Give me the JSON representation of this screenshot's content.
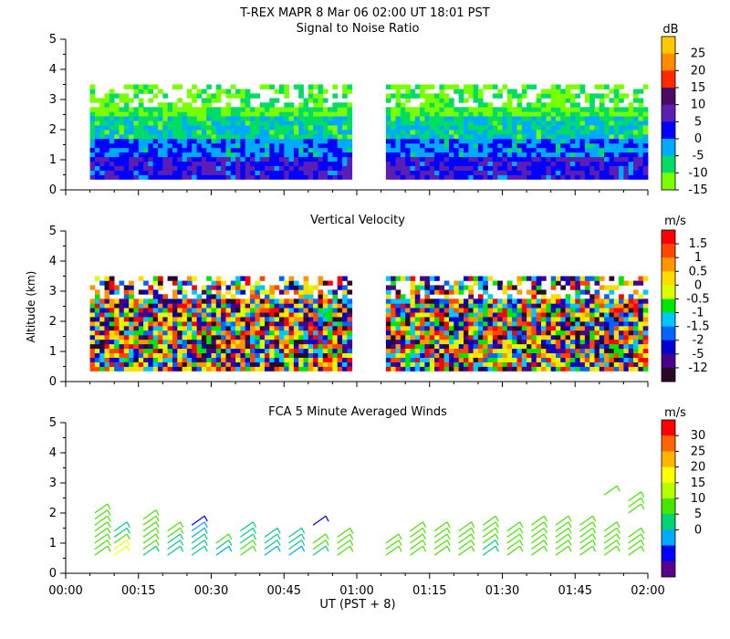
{
  "header": {
    "title": "T-REX   MAPR   8 Mar 06   02:00 UT   18:01   PST",
    "xlabel": "UT  (PST + 8)",
    "ylabel": "Altitude (km)",
    "x_ticks": [
      "00:00",
      "00:15",
      "00:30",
      "00:45",
      "01:00",
      "01:15",
      "01:30",
      "01:45",
      "02:00"
    ]
  },
  "chart_data": [
    {
      "type": "heatmap",
      "title": "Signal to Noise Ratio",
      "ylim": [
        0,
        5
      ],
      "y_ticks": [
        "0",
        "1",
        "2",
        "3",
        "4",
        "5"
      ],
      "colorbar": {
        "unit": "dB",
        "ticks": [
          "25",
          "20",
          "15",
          "10",
          "5",
          "0",
          "-5",
          "-10",
          "-15"
        ],
        "colors": [
          "#FFC800",
          "#FF8C00",
          "#FF2800",
          "#4B0A64",
          "#5A1EB4",
          "#0000FF",
          "#00AAFF",
          "#00DC64",
          "#78FF00"
        ]
      },
      "data_gaps": [
        [
          "00:59",
          "01:06"
        ]
      ]
    },
    {
      "type": "heatmap",
      "title": "Vertical Velocity",
      "ylim": [
        0,
        5
      ],
      "y_ticks": [
        "0",
        "1",
        "2",
        "3",
        "4",
        "5"
      ],
      "colorbar": {
        "unit": "m/s",
        "ticks": [
          "1.5",
          "1",
          "0.5",
          "0",
          "-0.5",
          "-1",
          "-1.5",
          "-2",
          "-5",
          "-12"
        ],
        "colors": [
          "#FF0000",
          "#FF4600",
          "#FF9600",
          "#FFDC00",
          "#DCFF00",
          "#00E600",
          "#00C8FF",
          "#0064FF",
          "#0000D2",
          "#46008C",
          "#280A28"
        ]
      },
      "data_gaps": [
        [
          "00:59",
          "01:06"
        ]
      ]
    },
    {
      "type": "scatter",
      "title": "FCA 5 Minute Averaged Winds",
      "ylim": [
        0,
        5
      ],
      "y_ticks": [
        "0",
        "1",
        "2",
        "3",
        "4",
        "5"
      ],
      "colorbar": {
        "unit": "m/s",
        "ticks": [
          "30",
          "25",
          "20",
          "15",
          "10",
          "5",
          "0"
        ],
        "colors": [
          "#FF0000",
          "#FF6400",
          "#FFB400",
          "#FFFF00",
          "#B4FF00",
          "#46E600",
          "#00D278",
          "#00AAFF",
          "#0000FF",
          "#5A008C"
        ]
      },
      "profiles": [
        {
          "time": "00:06",
          "heights": [
            0.6,
            0.8,
            1.0,
            1.2,
            1.4,
            1.6,
            1.8,
            2.0
          ],
          "speeds": [
            14,
            14,
            13,
            13,
            13,
            13,
            13,
            13
          ]
        },
        {
          "time": "00:10",
          "heights": [
            0.6,
            0.8,
            1.0,
            1.2,
            1.4
          ],
          "speeds": [
            20,
            20,
            12,
            10,
            10
          ]
        },
        {
          "time": "00:16",
          "heights": [
            0.6,
            0.8,
            1.0,
            1.2,
            1.4,
            1.6,
            1.8
          ],
          "speeds": [
            11,
            12,
            14,
            14,
            14,
            14,
            14
          ]
        },
        {
          "time": "00:21",
          "heights": [
            0.6,
            0.8,
            1.0,
            1.2,
            1.4
          ],
          "speeds": [
            9,
            9,
            9,
            13,
            13
          ]
        },
        {
          "time": "00:26",
          "heights": [
            0.6,
            0.8,
            1.0,
            1.2,
            1.4,
            1.6
          ],
          "speeds": [
            9,
            9,
            10,
            6,
            6,
            4
          ]
        },
        {
          "time": "00:31",
          "heights": [
            0.6,
            0.8,
            1.0
          ],
          "speeds": [
            8,
            10,
            12
          ]
        },
        {
          "time": "00:36",
          "heights": [
            0.6,
            0.8,
            1.0,
            1.2,
            1.4
          ],
          "speeds": [
            13,
            12,
            9,
            9,
            9
          ]
        },
        {
          "time": "00:41",
          "heights": [
            0.6,
            0.8,
            1.0,
            1.2
          ],
          "speeds": [
            8,
            9,
            9,
            9
          ]
        },
        {
          "time": "00:46",
          "heights": [
            0.6,
            0.8,
            1.0,
            1.2
          ],
          "speeds": [
            7,
            9,
            9,
            9
          ]
        },
        {
          "time": "00:51",
          "heights": [
            0.6,
            0.8,
            1.0,
            1.6
          ],
          "speeds": [
            9,
            12,
            12,
            4
          ]
        },
        {
          "time": "00:56",
          "heights": [
            0.6,
            0.8,
            1.0,
            1.2
          ],
          "speeds": [
            13,
            13,
            13,
            13
          ]
        },
        {
          "time": "01:06",
          "heights": [
            0.6,
            0.8,
            1.0
          ],
          "speeds": [
            13,
            13,
            13
          ]
        },
        {
          "time": "01:11",
          "heights": [
            0.6,
            0.8,
            1.0,
            1.2,
            1.4
          ],
          "speeds": [
            13,
            13,
            13,
            13,
            13
          ]
        },
        {
          "time": "01:16",
          "heights": [
            0.6,
            0.8,
            1.0,
            1.2,
            1.4
          ],
          "speeds": [
            13,
            13,
            12,
            12,
            12
          ]
        },
        {
          "time": "01:21",
          "heights": [
            0.6,
            0.8,
            1.0,
            1.2,
            1.4
          ],
          "speeds": [
            13,
            13,
            13,
            13,
            13
          ]
        },
        {
          "time": "01:26",
          "heights": [
            0.6,
            0.8,
            1.0,
            1.2,
            1.4,
            1.6
          ],
          "speeds": [
            9,
            10,
            12,
            12,
            13,
            13
          ]
        },
        {
          "time": "01:31",
          "heights": [
            0.6,
            0.8,
            1.0,
            1.2,
            1.4
          ],
          "speeds": [
            13,
            13,
            13,
            13,
            13
          ]
        },
        {
          "time": "01:36",
          "heights": [
            0.6,
            0.8,
            1.0,
            1.2,
            1.4,
            1.6
          ],
          "speeds": [
            14,
            14,
            13,
            13,
            13,
            13
          ]
        },
        {
          "time": "01:41",
          "heights": [
            0.6,
            0.8,
            1.0,
            1.2,
            1.4,
            1.6
          ],
          "speeds": [
            13,
            13,
            13,
            13,
            13,
            13
          ]
        },
        {
          "time": "01:46",
          "heights": [
            0.6,
            0.8,
            1.0,
            1.2,
            1.4,
            1.6
          ],
          "speeds": [
            14,
            14,
            13,
            13,
            13,
            13
          ]
        },
        {
          "time": "01:51",
          "heights": [
            0.6,
            0.8,
            1.0,
            1.2,
            1.4,
            2.6
          ],
          "speeds": [
            14,
            14,
            13,
            13,
            13,
            14
          ]
        },
        {
          "time": "01:56",
          "heights": [
            0.6,
            0.8,
            1.0,
            1.2,
            2.0,
            2.2,
            2.4
          ],
          "speeds": [
            13,
            13,
            13,
            13,
            13,
            14,
            14
          ]
        }
      ]
    }
  ]
}
